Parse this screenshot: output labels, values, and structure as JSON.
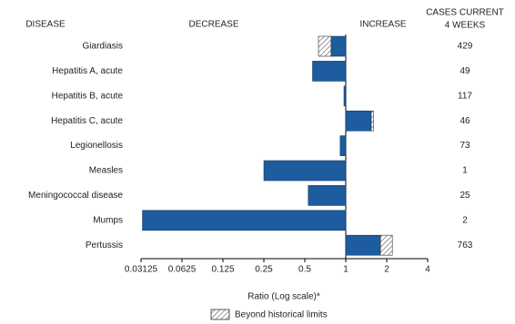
{
  "chart_data": {
    "type": "bar",
    "orientation": "horizontal",
    "xscale": "log",
    "column_header": "DISEASE",
    "decrease_label": "DECREASE",
    "increase_label": "INCREASE",
    "cases_header": [
      "CASES CURRENT",
      "4 WEEKS"
    ],
    "xlabel": "Ratio (Log scale)*",
    "categories": [
      "Giardiasis",
      "Hepatitis A, acute",
      "Hepatitis B, acute",
      "Hepatitis C, acute",
      "Legionellosis",
      "Measles",
      "Meningococcal disease",
      "Mumps",
      "Pertussis"
    ],
    "values": [
      0.78,
      0.57,
      0.97,
      1.54,
      0.91,
      0.25,
      0.53,
      0.032,
      1.8
    ],
    "historical_limit": [
      0.63,
      null,
      null,
      1.6,
      null,
      null,
      null,
      null,
      2.2
    ],
    "cases": [
      429,
      49,
      117,
      46,
      73,
      1,
      25,
      2,
      763
    ],
    "color": "#1d5c9e",
    "legend": "Beyond historical limits",
    "xlim": [
      0.03125,
      4
    ],
    "xticks": [
      0.03125,
      0.0625,
      0.125,
      0.25,
      0.5,
      1,
      2,
      4
    ]
  }
}
